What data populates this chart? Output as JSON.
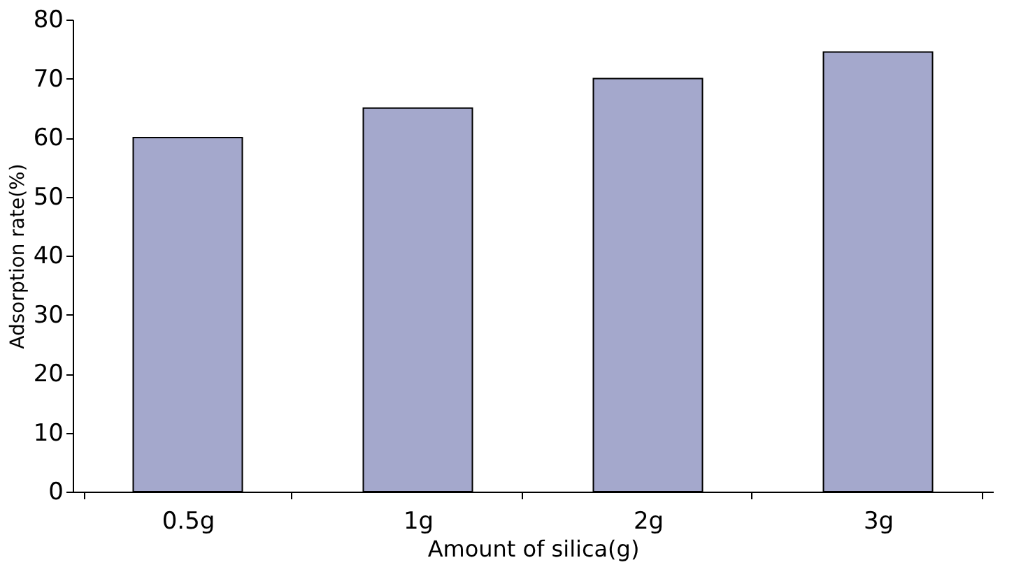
{
  "chart_data": {
    "type": "bar",
    "xlabel": "Amount of silica(g)",
    "ylabel": "Adsorption rate(%)",
    "categories": [
      "0.5g",
      "1g",
      "2g",
      "3g"
    ],
    "values": [
      60,
      65,
      70,
      74.5
    ],
    "color": "#a4a8cc",
    "ylim": [
      0,
      80
    ],
    "yticks": [
      0,
      10,
      20,
      30,
      40,
      50,
      60,
      70,
      80
    ],
    "grid": false
  }
}
